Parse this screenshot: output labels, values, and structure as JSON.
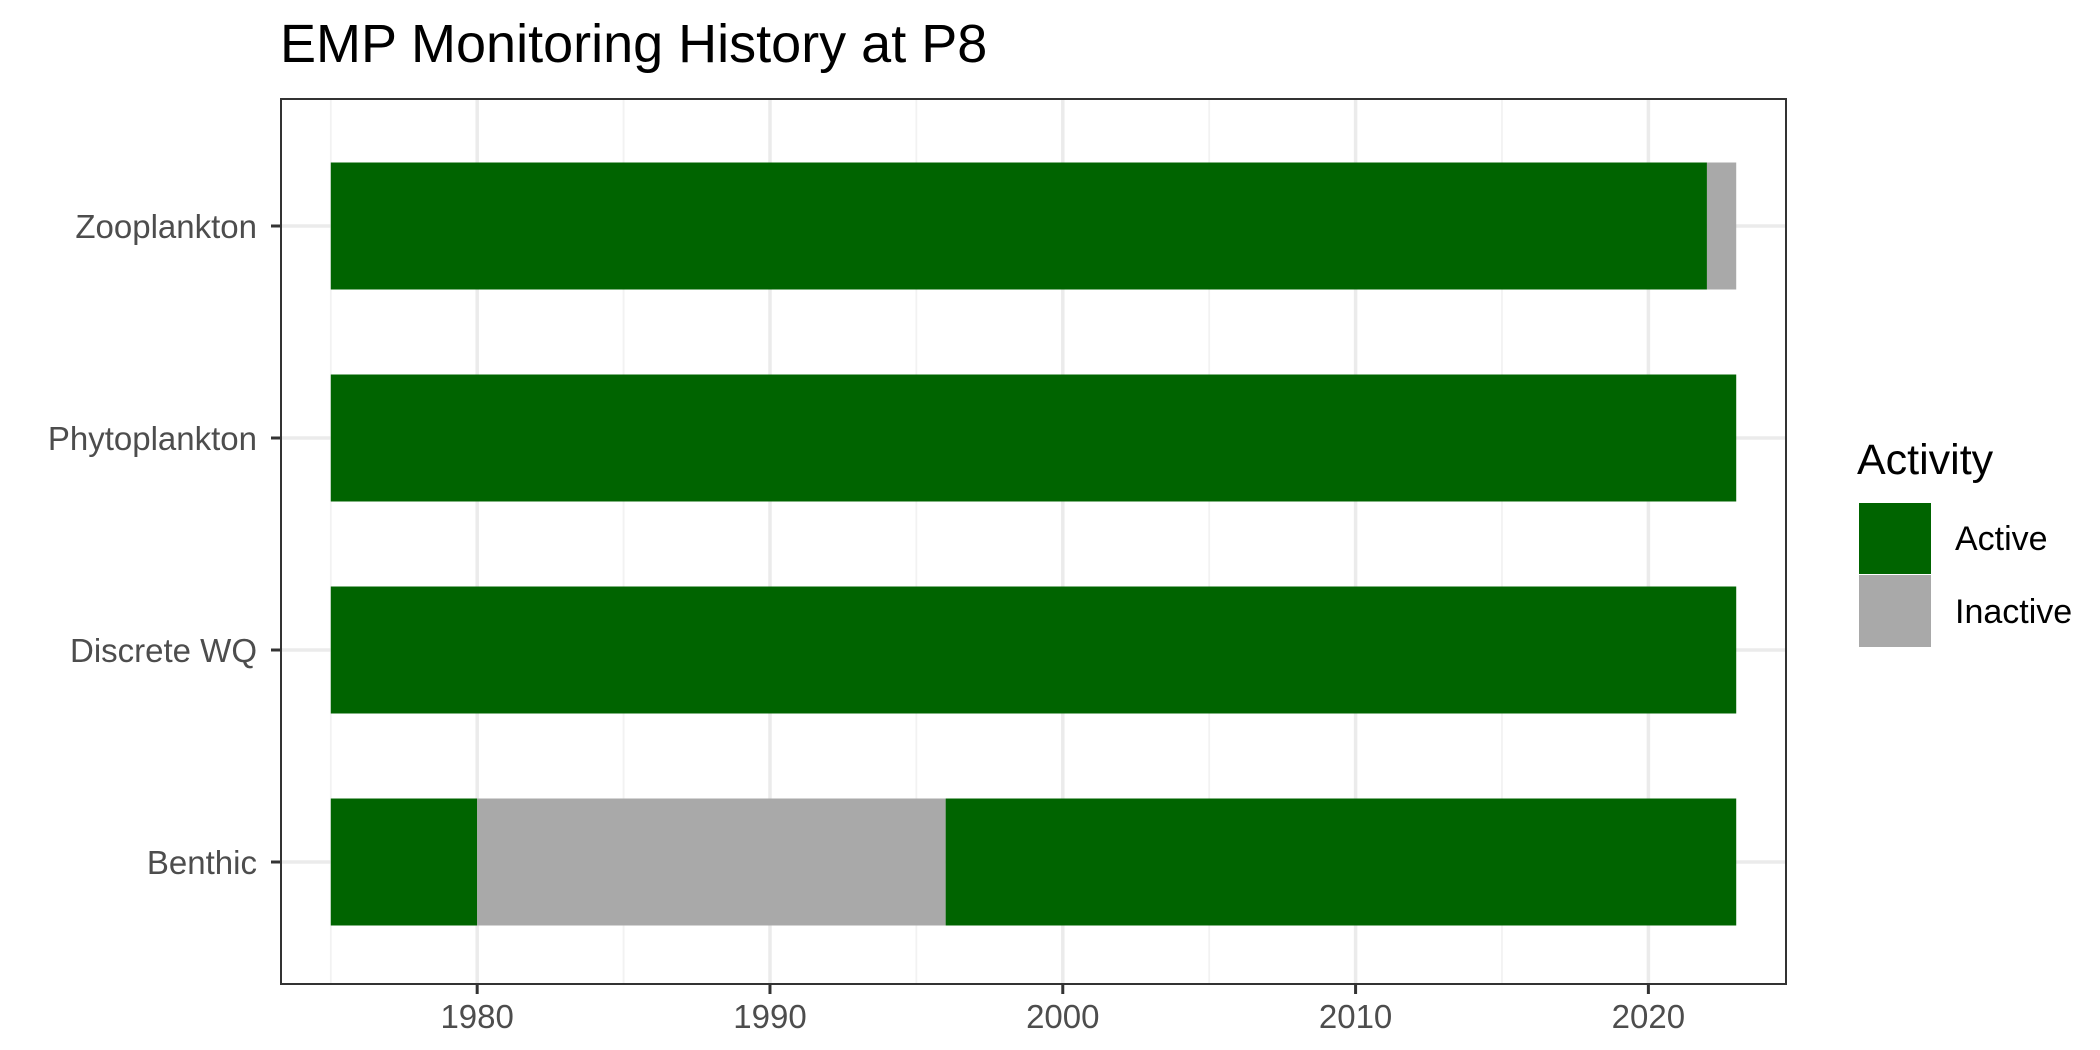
{
  "chart_data": {
    "type": "bar",
    "orientation": "horizontal",
    "stacked": true,
    "title": "EMP Monitoring History at P8",
    "xlabel": "",
    "ylabel": "",
    "xlim": [
      1973.3,
      2024.7
    ],
    "x_ticks": [
      1980,
      1990,
      2000,
      2010,
      2020
    ],
    "x_tick_labels": [
      "1980",
      "1990",
      "2000",
      "2010",
      "2020"
    ],
    "categories": [
      "Zooplankton",
      "Phytoplankton",
      "Discrete WQ",
      "Benthic"
    ],
    "grid": true,
    "legend": {
      "title": "Activity",
      "position": "right",
      "entries": [
        {
          "label": "Active",
          "color": "#006400"
        },
        {
          "label": "Inactive",
          "color": "#a9a9a9"
        }
      ]
    },
    "series": [
      {
        "category": "Zooplankton",
        "segments": [
          {
            "activity": "Active",
            "start": 1975,
            "end": 2022
          },
          {
            "activity": "Inactive",
            "start": 2022,
            "end": 2023
          }
        ]
      },
      {
        "category": "Phytoplankton",
        "segments": [
          {
            "activity": "Active",
            "start": 1975,
            "end": 2023
          }
        ]
      },
      {
        "category": "Discrete WQ",
        "segments": [
          {
            "activity": "Active",
            "start": 1975,
            "end": 2023
          }
        ]
      },
      {
        "category": "Benthic",
        "segments": [
          {
            "activity": "Active",
            "start": 1975,
            "end": 1980
          },
          {
            "activity": "Inactive",
            "start": 1980,
            "end": 1996
          },
          {
            "activity": "Active",
            "start": 1996,
            "end": 2023
          }
        ]
      }
    ]
  }
}
